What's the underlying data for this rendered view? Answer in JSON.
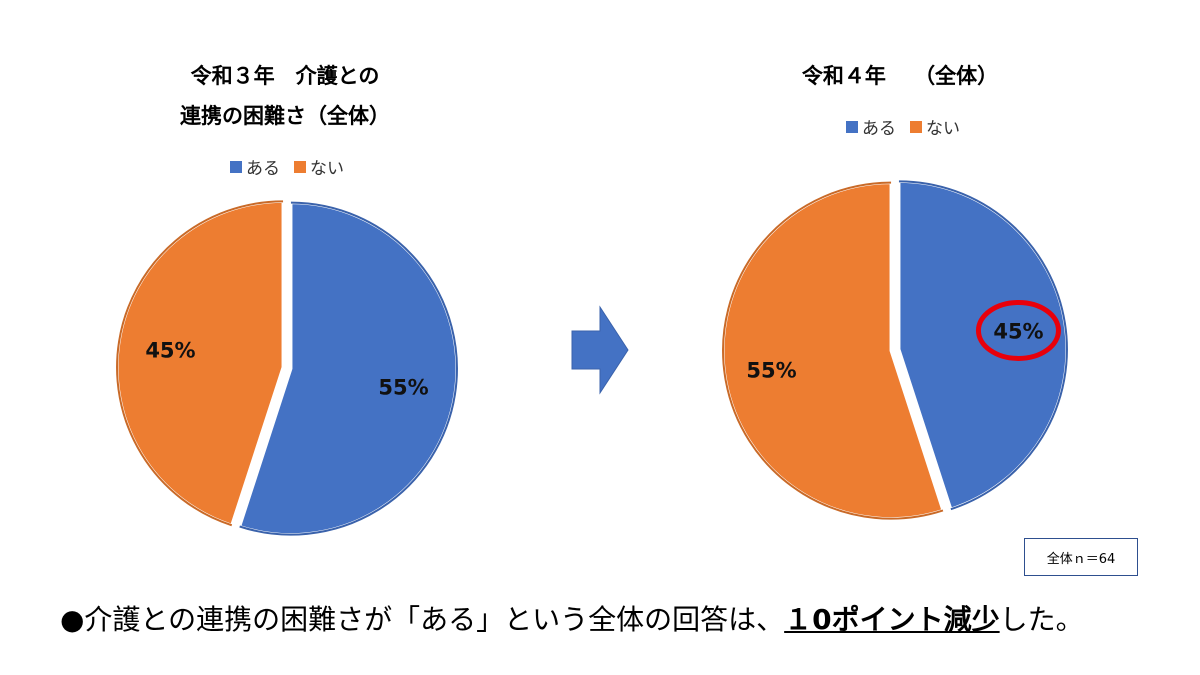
{
  "colors": {
    "yes": "#4472C4",
    "no": "#ED7D31",
    "highlight": "#E8000B"
  },
  "chart_data": [
    {
      "type": "pie",
      "title_line1": "令和３年　介護との",
      "title_line2": "連携の困難さ（全体）",
      "legend": [
        "ある",
        "ない"
      ],
      "categories": [
        "ある",
        "ない"
      ],
      "values": [
        55,
        45
      ],
      "labels": [
        "55%",
        "45%"
      ],
      "legend_position": "top"
    },
    {
      "type": "pie",
      "title_line1": "令和４年　 （全体）",
      "legend": [
        "ある",
        "ない"
      ],
      "categories": [
        "ある",
        "ない"
      ],
      "values": [
        45,
        55
      ],
      "labels": [
        "45%",
        "55%"
      ],
      "legend_position": "top",
      "highlighted_label": "45%"
    }
  ],
  "sample_note": "全体ｎ＝64",
  "summary": {
    "prefix": "●介護との連携の困難さが「ある」という全体の回答は、",
    "emphasis": "１0ポイント減少",
    "suffix": "した。"
  }
}
